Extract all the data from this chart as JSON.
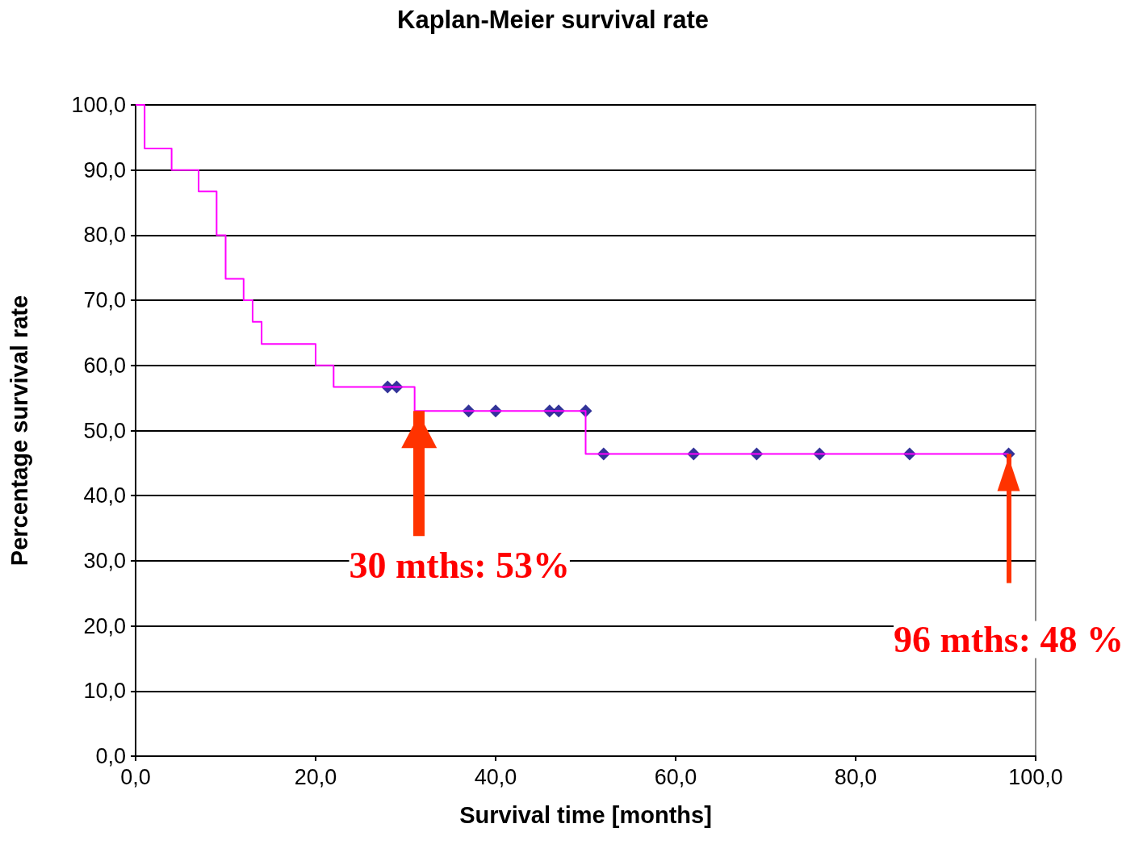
{
  "chart_data": {
    "type": "step",
    "title": "Kaplan-Meier survival rate",
    "xlabel": "Survival time [months]",
    "ylabel": "Percentage survival rate",
    "series": [
      {
        "color": "#ff00ff",
        "marker": "none",
        "x": [
          0,
          1,
          4,
          7,
          9,
          10,
          12,
          13,
          14,
          20,
          22,
          31,
          50,
          97
        ],
        "values": [
          100,
          93.3,
          90,
          86.7,
          80,
          73.3,
          70,
          66.7,
          63.3,
          60,
          56.7,
          53,
          46.4,
          46.4
        ]
      },
      {
        "type": "scatter",
        "color": "#000080",
        "marker": "diamond",
        "x": [
          28,
          29,
          37,
          40,
          46,
          47,
          50,
          52,
          62,
          69,
          76,
          86,
          97
        ],
        "values": [
          56.7,
          56.7,
          53,
          53,
          53,
          53,
          53,
          46.4,
          46.4,
          46.4,
          46.4,
          46.4,
          46.4
        ]
      }
    ],
    "xlim": [
      0,
      100
    ],
    "ylim": [
      0,
      100
    ],
    "xticks": [
      {
        "value": 0,
        "label": "0,0"
      },
      {
        "value": 20,
        "label": "20,0"
      },
      {
        "value": 40,
        "label": "40,0"
      },
      {
        "value": 60,
        "label": "60,0"
      },
      {
        "value": 80,
        "label": "80,0"
      },
      {
        "value": 100,
        "label": "100,0"
      }
    ],
    "yticks": [
      {
        "value": 0,
        "label": "0,0"
      },
      {
        "value": 10,
        "label": "10,0"
      },
      {
        "value": 20,
        "label": "20,0"
      },
      {
        "value": 30,
        "label": "30,0"
      },
      {
        "value": 40,
        "label": "40,0"
      },
      {
        "value": 50,
        "label": "50,0"
      },
      {
        "value": 60,
        "label": "60,0"
      },
      {
        "value": 70,
        "label": "70,0"
      },
      {
        "value": 80,
        "label": "80,0"
      },
      {
        "value": 90,
        "label": "90,0"
      },
      {
        "value": 100,
        "label": "100,0"
      }
    ],
    "grid": "y",
    "annotations": [
      {
        "text": "30 mths: 53%",
        "x": 31.5,
        "y": 53
      },
      {
        "text": "96 mths: 48 %",
        "x": 97,
        "y": 46.4
      }
    ]
  }
}
